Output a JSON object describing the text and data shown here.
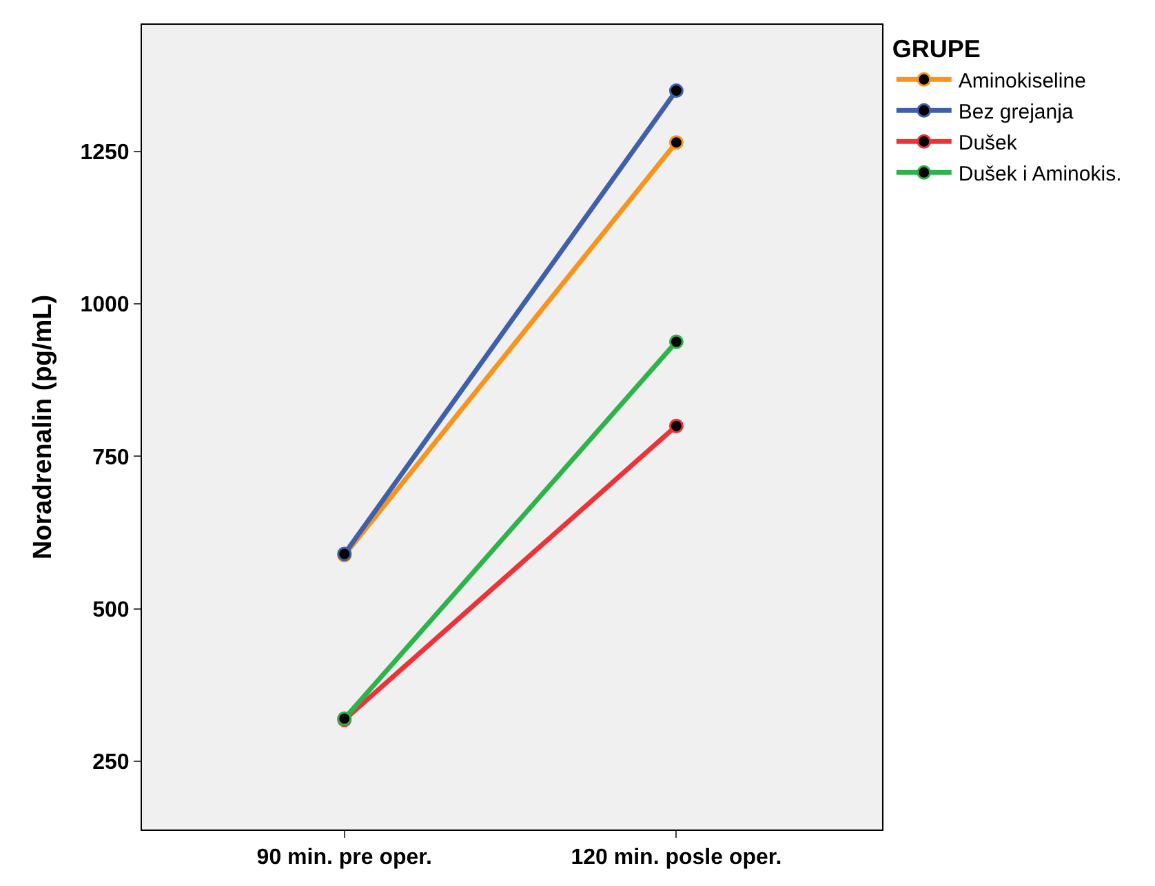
{
  "chart_data": {
    "type": "line",
    "ylabel": "Noradrenalin (pg/mL)",
    "legend_title": "GRUPE",
    "categories": [
      "90 min. pre oper.",
      "120 min. posle oper."
    ],
    "series": [
      {
        "name": "Aminokiseline",
        "color": "#f7941d",
        "values": [
          588,
          1265
        ]
      },
      {
        "name": "Bez grejanja",
        "color": "#3f5faa",
        "values": [
          590,
          1350
        ]
      },
      {
        "name": "Dušek",
        "color": "#ee3338",
        "values": [
          318,
          800
        ]
      },
      {
        "name": "Dušek i Aminokis.",
        "color": "#2db34a",
        "values": [
          320,
          938
        ]
      }
    ],
    "ylim": [
      138,
      1458
    ],
    "yticks": [
      250,
      500,
      750,
      1000,
      1250
    ],
    "grid": false,
    "legend": "top right",
    "marker": "circle",
    "line_style": "solid"
  }
}
